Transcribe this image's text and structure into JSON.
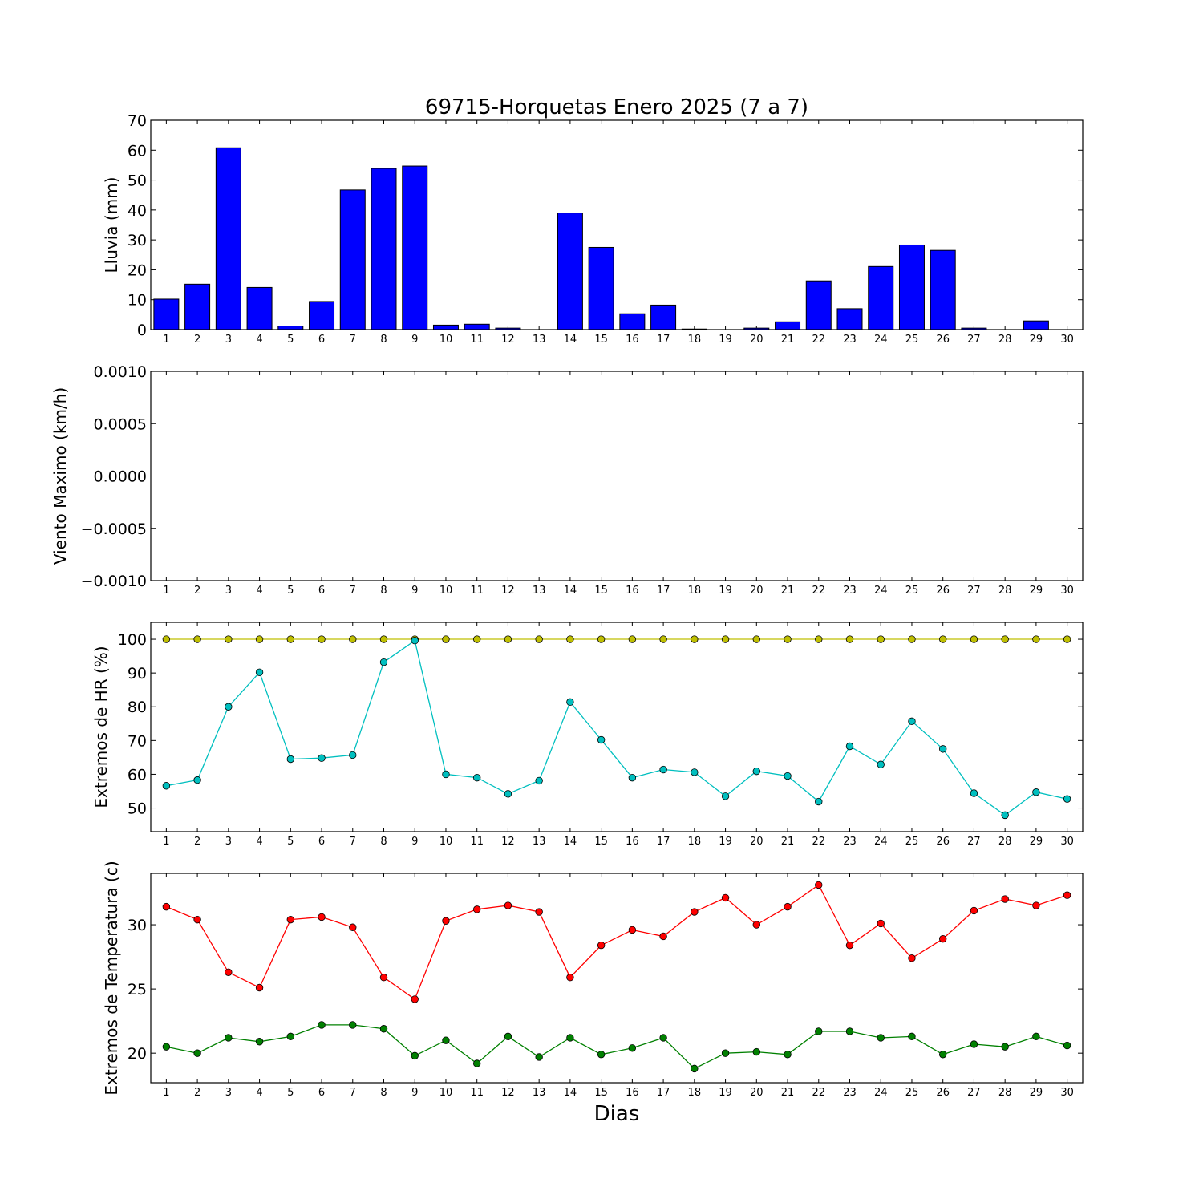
{
  "title": "69715-Horquetas Enero 2025  (7 a 7)",
  "xlabel": "Dias",
  "chart_data": [
    {
      "type": "bar",
      "ylabel": "Lluvia (mm)",
      "categories": [
        "1",
        "2",
        "3",
        "4",
        "5",
        "6",
        "7",
        "8",
        "9",
        "10",
        "11",
        "12",
        "13",
        "14",
        "15",
        "16",
        "17",
        "18",
        "19",
        "20",
        "21",
        "22",
        "23",
        "24",
        "25",
        "26",
        "27",
        "28",
        "29",
        "30"
      ],
      "values": [
        10.2,
        15.2,
        60.8,
        14.1,
        1.2,
        9.4,
        46.7,
        53.9,
        54.7,
        1.5,
        1.8,
        0.5,
        0,
        39.0,
        27.5,
        5.3,
        8.2,
        0.2,
        0,
        0.5,
        2.6,
        16.3,
        7.0,
        21.1,
        28.3,
        26.5,
        0.5,
        0,
        2.9,
        0
      ],
      "yticks": [
        "0",
        "10",
        "20",
        "30",
        "40",
        "50",
        "60",
        "70"
      ],
      "ylim": [
        0,
        70
      ],
      "color": "#0000ff"
    },
    {
      "type": "line",
      "ylabel": "Viento Maximo (km/h)",
      "categories": [
        "1",
        "2",
        "3",
        "4",
        "5",
        "6",
        "7",
        "8",
        "9",
        "10",
        "11",
        "12",
        "13",
        "14",
        "15",
        "16",
        "17",
        "18",
        "19",
        "20",
        "21",
        "22",
        "23",
        "24",
        "25",
        "26",
        "27",
        "28",
        "29",
        "30"
      ],
      "series": [],
      "yticks": [
        "−0.0010",
        "−0.0005",
        "0.0000",
        "0.0005",
        "0.0010"
      ],
      "ylim": [
        -0.001,
        0.001
      ]
    },
    {
      "type": "line",
      "ylabel": "Extremos de HR (%)",
      "categories": [
        "1",
        "2",
        "3",
        "4",
        "5",
        "6",
        "7",
        "8",
        "9",
        "10",
        "11",
        "12",
        "13",
        "14",
        "15",
        "16",
        "17",
        "18",
        "19",
        "20",
        "21",
        "22",
        "23",
        "24",
        "25",
        "26",
        "27",
        "28",
        "29",
        "30"
      ],
      "series": [
        {
          "color": "#bfbf00",
          "values": [
            100,
            100,
            100,
            100,
            100,
            100,
            100,
            100,
            100,
            100,
            100,
            100,
            100,
            100,
            100,
            100,
            100,
            100,
            100,
            100,
            100,
            100,
            100,
            100,
            100,
            100,
            100,
            100,
            100,
            100
          ]
        },
        {
          "color": "#00bfbf",
          "values": [
            56.6,
            58.3,
            80.0,
            90.2,
            64.5,
            64.8,
            65.7,
            93.2,
            99.6,
            60.0,
            59.0,
            54.2,
            58.1,
            81.4,
            70.2,
            59.0,
            61.4,
            60.6,
            53.5,
            60.9,
            59.5,
            51.9,
            68.3,
            62.9,
            75.7,
            67.5,
            54.4,
            47.9,
            54.7,
            52.7
          ]
        }
      ],
      "yticks": [
        "50",
        "60",
        "70",
        "80",
        "90",
        "100"
      ],
      "ylim": [
        43,
        105
      ]
    },
    {
      "type": "line",
      "ylabel": "Extremos de Temperatura (c)",
      "categories": [
        "1",
        "2",
        "3",
        "4",
        "5",
        "6",
        "7",
        "8",
        "9",
        "10",
        "11",
        "12",
        "13",
        "14",
        "15",
        "16",
        "17",
        "18",
        "19",
        "20",
        "21",
        "22",
        "23",
        "24",
        "25",
        "26",
        "27",
        "28",
        "29",
        "30"
      ],
      "series": [
        {
          "color": "#ff0000",
          "values": [
            31.4,
            30.4,
            26.3,
            25.1,
            30.4,
            30.6,
            29.8,
            25.9,
            24.2,
            30.3,
            31.2,
            31.5,
            31.0,
            25.9,
            28.4,
            29.6,
            29.1,
            31.0,
            32.1,
            30.0,
            31.4,
            33.1,
            28.4,
            30.1,
            27.4,
            28.9,
            31.1,
            32.0,
            31.5,
            32.3
          ]
        },
        {
          "color": "#008000",
          "values": [
            20.5,
            20.0,
            21.2,
            20.9,
            21.3,
            22.2,
            22.2,
            21.9,
            19.8,
            21.0,
            19.2,
            21.3,
            19.7,
            21.2,
            19.9,
            20.4,
            21.2,
            18.8,
            20.0,
            20.1,
            19.9,
            21.7,
            21.7,
            21.2,
            21.3,
            19.9,
            20.7,
            20.5,
            21.3,
            20.6
          ]
        }
      ],
      "yticks": [
        "20",
        "25",
        "30"
      ],
      "ytick_values": [
        20,
        25,
        30
      ],
      "ylim": [
        17.7,
        34.0
      ]
    }
  ]
}
